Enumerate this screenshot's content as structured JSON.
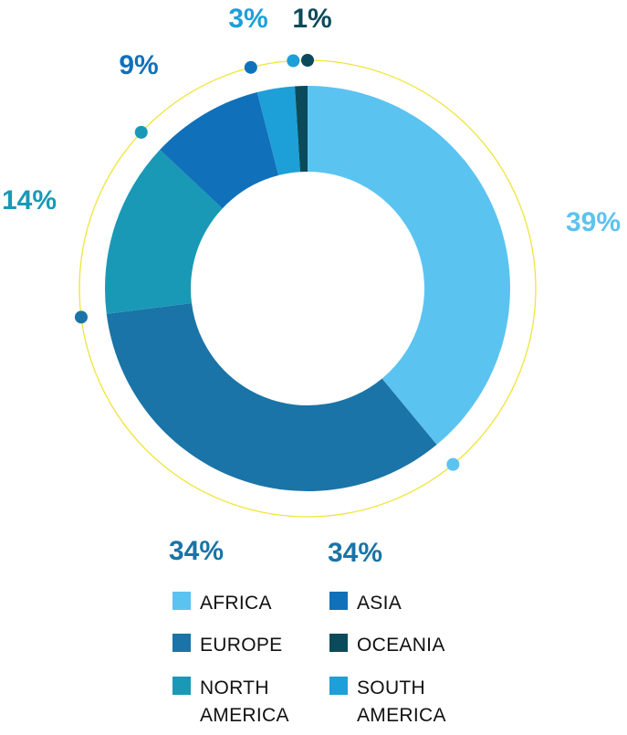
{
  "chart_data": {
    "type": "pie",
    "donut": true,
    "series": [
      {
        "name": "AFRICA",
        "value": 39,
        "color": "#5bc3f0"
      },
      {
        "name": "EUROPE",
        "value": 34,
        "color": "#1a74a7"
      },
      {
        "name": "NORTH AMERICA",
        "value": 14,
        "color": "#1999b6"
      },
      {
        "name": "ASIA",
        "value": 9,
        "color": "#1071ba"
      },
      {
        "name": "SOUTH AMERICA",
        "value": 3,
        "color": "#1d9fd8"
      },
      {
        "name": "OCEANIA",
        "value": 1,
        "color": "#0b4a5a"
      }
    ],
    "labels": {
      "africa": "39%",
      "europe_left": "34%",
      "europe_right": "34%",
      "north_america": "14%",
      "asia": "9%",
      "south_america": "3%",
      "oceania": "1%"
    },
    "legend": {
      "placement": "bottom",
      "items": [
        {
          "lines": [
            "AFRICA"
          ],
          "color": "#5bc3f0"
        },
        {
          "lines": [
            "ASIA"
          ],
          "color": "#1071ba"
        },
        {
          "lines": [
            "EUROPE"
          ],
          "color": "#1a74a7"
        },
        {
          "lines": [
            "OCEANIA"
          ],
          "color": "#0b4a5a"
        },
        {
          "lines": [
            "NORTH",
            "AMERICA"
          ],
          "color": "#1999b6"
        },
        {
          "lines": [
            "SOUTH",
            "AMERICA"
          ],
          "color": "#1d9fd8"
        }
      ]
    },
    "outer_ring_color": "#f0e43a"
  }
}
